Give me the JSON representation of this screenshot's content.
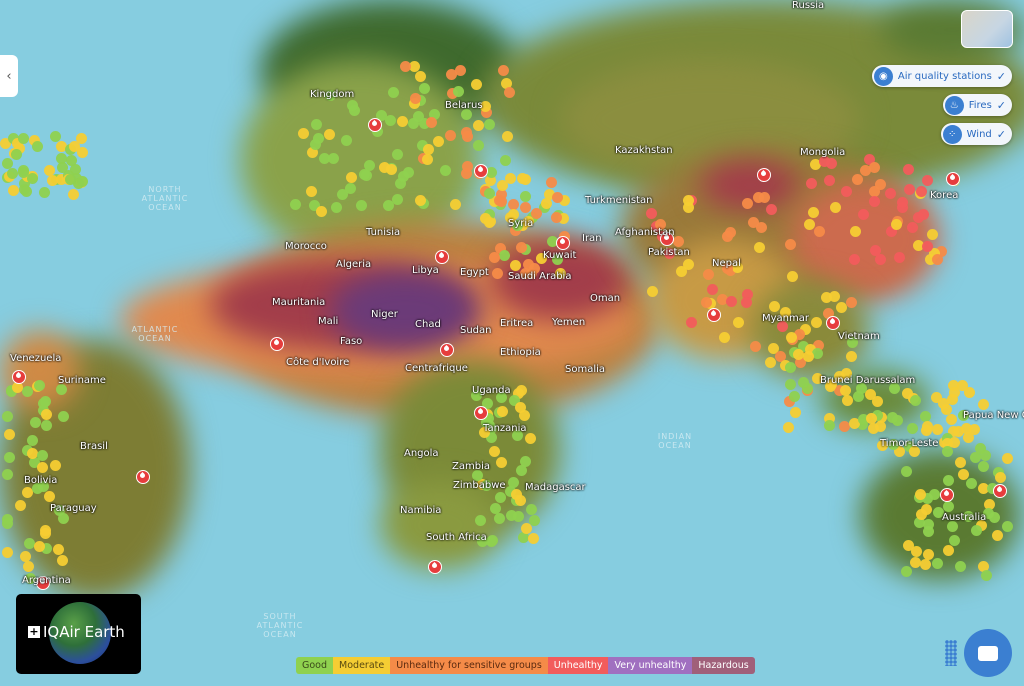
{
  "map": {
    "country_labels": [
      "Russia",
      "Kazakhstan",
      "Mongolia",
      "Turkmenistan",
      "Iran",
      "Afghanistan",
      "Pakistan",
      "Nepal",
      "Myanmar",
      "Vietnam",
      "Korea",
      "Syria",
      "Kuwait",
      "Saudi Arabia",
      "Oman",
      "Yemen",
      "Egypt",
      "Libya",
      "Algeria",
      "Tunisia",
      "Morocco",
      "Mauritania",
      "Mali",
      "Niger",
      "Chad",
      "Sudan",
      "Eritrea",
      "Ethiopia",
      "Somalia",
      "Faso",
      "Côte d'Ivoire",
      "Centrafrique",
      "Uganda",
      "Tanzania",
      "Angola",
      "Zambia",
      "Zimbabwe",
      "Madagascar",
      "Namibia",
      "South Africa",
      "Brasil",
      "Bolivia",
      "Paraguay",
      "Argentina",
      "Venezuela",
      "Suriname",
      "Australia",
      "Brunei Darussalam",
      "Timor-Leste",
      "Papua New Guinea",
      "Belarus",
      "Kingdom"
    ],
    "ocean_labels": [
      "North Atlantic Ocean",
      "Atlantic Ocean",
      "South Atlantic Ocean",
      "Indian Ocean"
    ]
  },
  "layers": [
    {
      "label": "Air quality stations",
      "icon": "station-icon",
      "checked": true
    },
    {
      "label": "Fires",
      "icon": "flame-icon",
      "checked": true
    },
    {
      "label": "Wind",
      "icon": "wind-icon",
      "checked": true
    }
  ],
  "logo": {
    "text": "IQAir Earth"
  },
  "legend": [
    {
      "label": "Good",
      "color": "#8fd14f",
      "text": "#3a4a1a"
    },
    {
      "label": "Moderate",
      "color": "#f5cd33",
      "text": "#5a4a10"
    },
    {
      "label": "Unhealthy for sensitive groups",
      "color": "#f58b48",
      "text": "#5a2a10"
    },
    {
      "label": "Unhealthy",
      "color": "#f25c5c",
      "text": "#ffffff"
    },
    {
      "label": "Very unhealthy",
      "color": "#a070c0",
      "text": "#ffffff"
    },
    {
      "label": "Hazardous",
      "color": "#a0607a",
      "text": "#ffffff"
    }
  ],
  "check_glyph": "✓"
}
